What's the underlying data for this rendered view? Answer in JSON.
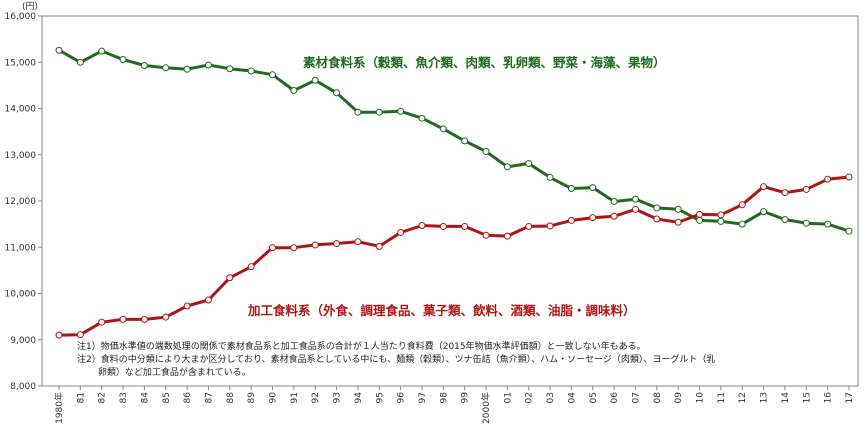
{
  "chart_data": {
    "type": "line",
    "unit": "(円)",
    "ylim": [
      8000,
      16000
    ],
    "yticks": [
      "8,000",
      "9,000",
      "10,000",
      "11,000",
      "12,000",
      "13,000",
      "14,000",
      "15,000",
      "16,000"
    ],
    "categories": [
      "1980年",
      "81",
      "82",
      "83",
      "84",
      "85",
      "86",
      "87",
      "88",
      "89",
      "90",
      "91",
      "92",
      "93",
      "94",
      "95",
      "96",
      "97",
      "98",
      "99",
      "2000年",
      "01",
      "02",
      "03",
      "04",
      "05",
      "06",
      "07",
      "08",
      "09",
      "10",
      "11",
      "12",
      "13",
      "14",
      "15",
      "16",
      "17"
    ],
    "grid": false,
    "series": [
      {
        "name": "素材食料系（穀類、魚介類、肉類、乳卵類、野菜・海藻、果物）",
        "color": "#1f6b1f",
        "values": [
          15260,
          15000,
          15240,
          15060,
          14930,
          14880,
          14850,
          14940,
          14860,
          14810,
          14730,
          14390,
          14610,
          14340,
          13920,
          13920,
          13940,
          13790,
          13560,
          13300,
          13070,
          12740,
          12810,
          12510,
          12270,
          12290,
          11990,
          12040,
          11850,
          11820,
          11580,
          11560,
          11500,
          11770,
          11600,
          11520,
          11500,
          11350
        ]
      },
      {
        "name": "加工食料系（外食、調理食品、菓子類、飲料、酒類、油脂・調味料）",
        "color": "#b01515",
        "values": [
          9100,
          9110,
          9380,
          9440,
          9440,
          9490,
          9730,
          9860,
          10340,
          10580,
          10990,
          10990,
          11050,
          11080,
          11120,
          11020,
          11320,
          11470,
          11450,
          11450,
          11260,
          11240,
          11450,
          11460,
          11580,
          11640,
          11670,
          11820,
          11610,
          11540,
          11710,
          11700,
          11920,
          12310,
          12180,
          12250,
          12470,
          12520
        ]
      }
    ]
  },
  "notes": [
    "注1）物価水準値の端数処理の関係で素材食品系と加工食品系の合計が１人当たり食料費（2015年物価水準評価額）と一致しない年もある。",
    "注2）食料の中分類により大まか区分しており、素材食品系としている中にも、麺類（穀類）、ツナ缶詰（魚介類）、ハム・ソーセージ（肉類）、ヨーグルト（乳",
    "　　 卵類）など加工食品が含まれている。"
  ]
}
